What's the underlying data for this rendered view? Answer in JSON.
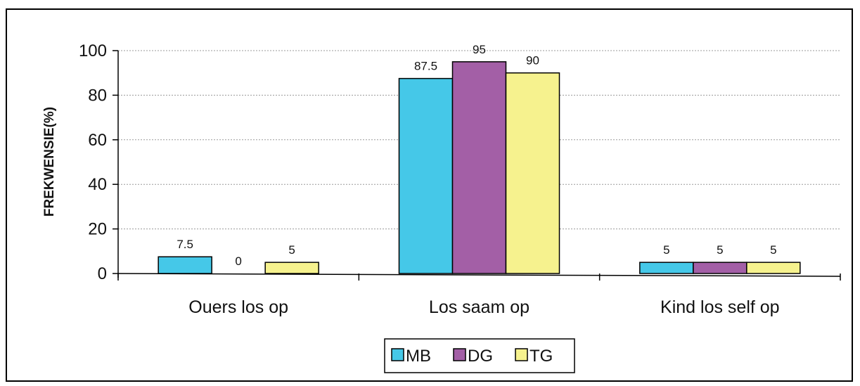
{
  "chart_data": {
    "type": "bar",
    "title": "",
    "xlabel": "",
    "ylabel": "FREKWENSIE(%)",
    "ylim": [
      0,
      100
    ],
    "yticks": [
      0,
      20,
      40,
      60,
      80,
      100
    ],
    "grid": true,
    "legend_position": "bottom",
    "categories": [
      "Ouers los op",
      "Los saam op",
      "Kind los self op"
    ],
    "series": [
      {
        "name": "MB",
        "color": "#45c8e8",
        "values": [
          7.5,
          87.5,
          5
        ],
        "labels": [
          "7.5",
          "87.5",
          "5"
        ]
      },
      {
        "name": "DG",
        "color": "#a35fa6",
        "values": [
          0,
          95,
          5
        ],
        "labels": [
          "0",
          "95",
          "5"
        ]
      },
      {
        "name": "TG",
        "color": "#f6f28e",
        "values": [
          5,
          90,
          5
        ],
        "labels": [
          "5",
          "90",
          "5"
        ]
      }
    ]
  }
}
